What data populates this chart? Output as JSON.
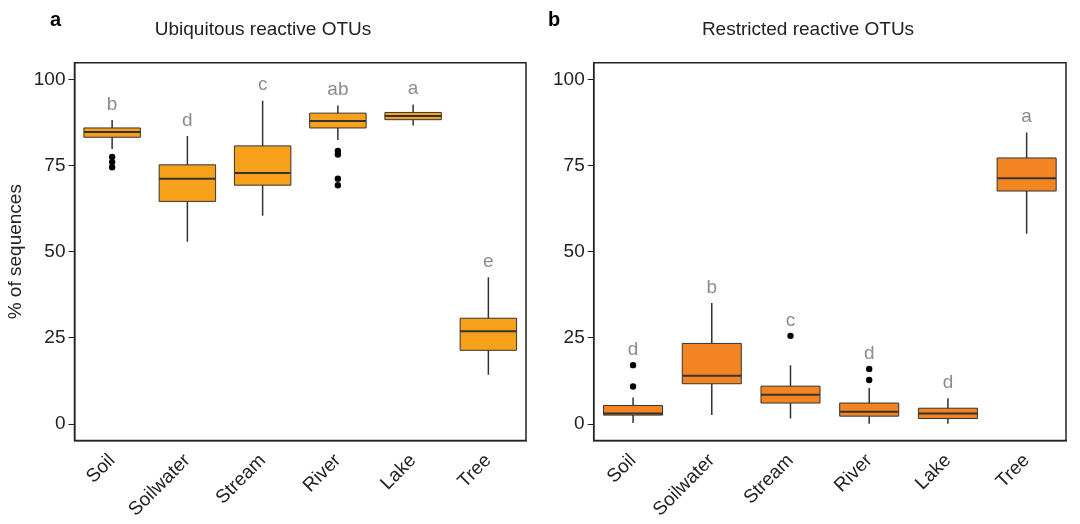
{
  "chart_data": [
    {
      "type": "box",
      "title": "Ubiquitous reactive OTUs",
      "ylabel": "% of sequences",
      "categories": [
        "Soil",
        "Soilwater",
        "Stream",
        "River",
        "Lake",
        "Tree"
      ],
      "series": [
        {
          "color": "#f7a11a",
          "boxes": [
            {
              "low": 79.8,
              "q1": 83.2,
              "median": 84.7,
              "q3": 85.9,
              "high": 88.2,
              "outliers": [
                77.5,
                76,
                74.5
              ]
            },
            {
              "low": 52.9,
              "q1": 64.6,
              "median": 71.2,
              "q3": 75.2,
              "high": 83.6
            },
            {
              "low": 60.4,
              "q1": 69.3,
              "median": 72.8,
              "q3": 80.7,
              "high": 93.8
            },
            {
              "low": 82.4,
              "q1": 85.9,
              "median": 87.9,
              "q3": 90.2,
              "high": 92.4,
              "outliers": [
                79.2,
                78.2,
                71.2,
                69.3
              ]
            },
            {
              "low": 86.6,
              "q1": 88.3,
              "median": 89.4,
              "q3": 90.4,
              "high": 92.7
            },
            {
              "low": 14.3,
              "q1": 21.4,
              "median": 26.9,
              "q3": 30.7,
              "high": 42.6
            }
          ]
        }
      ],
      "ylim": [
        -4.8,
        104.8
      ],
      "yticks": [
        0,
        25,
        50,
        75,
        100
      ],
      "grid": false,
      "annotations": [
        "a",
        "b",
        "d",
        "c",
        "ab",
        "a",
        "e"
      ]
    },
    {
      "type": "box",
      "title": "Restricted reactive OTUs",
      "categories": [
        "Soil",
        "Soilwater",
        "Stream",
        "River",
        "Lake",
        "Tree"
      ],
      "series": [
        {
          "color": "#f28522",
          "boxes": [
            {
              "low": 0.3,
              "q1": 2.6,
              "median": 3.1,
              "q3": 5.4,
              "high": 7.7,
              "outliers": [
                17.1,
                10.9
              ]
            },
            {
              "low": 2.6,
              "q1": 11.7,
              "median": 14,
              "q3": 23.4,
              "high": 35.1
            },
            {
              "low": 1.6,
              "q1": 6.1,
              "median": 8.5,
              "q3": 11,
              "high": 17.1,
              "outliers": [
                25.6
              ]
            },
            {
              "low": 0.1,
              "q1": 2.3,
              "median": 3.6,
              "q3": 6.1,
              "high": 10.5,
              "outliers": [
                16,
                12.8
              ]
            },
            {
              "low": 0.1,
              "q1": 1.6,
              "median": 3.1,
              "q3": 4.6,
              "high": 7.5
            },
            {
              "low": 55.2,
              "q1": 67.6,
              "median": 71.3,
              "q3": 77.2,
              "high": 84.6
            }
          ]
        }
      ],
      "ylim": [
        -4.8,
        104.8
      ],
      "yticks": [
        0,
        25,
        50,
        75,
        100
      ],
      "grid": false,
      "annotations": [
        "b",
        "d",
        "b",
        "c",
        "d",
        "d",
        "a"
      ]
    }
  ]
}
